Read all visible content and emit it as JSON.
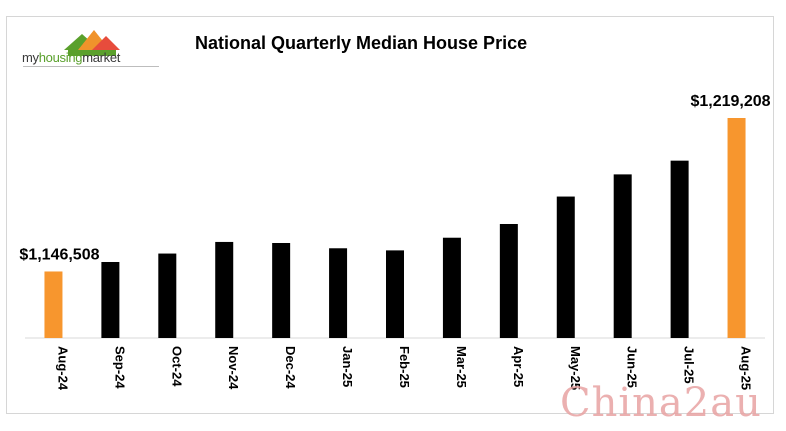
{
  "logo": {
    "part1": "my",
    "part2": "housing",
    "part3": "market",
    "house_colors": [
      "#5aa02c",
      "#f0932b",
      "#e74c3c"
    ]
  },
  "watermark": "China2au",
  "chart_data": {
    "type": "bar",
    "title": "National Quarterly Median House Price",
    "xlabel": "",
    "ylabel": "",
    "categories": [
      "Aug-24",
      "Sep-24",
      "Oct-24",
      "Nov-24",
      "Dec-24",
      "Jan-25",
      "Feb-25",
      "Mar-25",
      "Apr-25",
      "May-25",
      "Jun-25",
      "Jul-25",
      "Aug-25"
    ],
    "values": [
      1146508,
      1151000,
      1155000,
      1160500,
      1160000,
      1157500,
      1156500,
      1162500,
      1169000,
      1182000,
      1192500,
      1199000,
      1219208
    ],
    "highlight_indices": [
      0,
      12
    ],
    "data_labels": [
      {
        "index": 0,
        "text": "$1,146,508"
      },
      {
        "index": 12,
        "text": "$1,219,208"
      }
    ],
    "ylim": [
      1115000,
      1219208
    ],
    "grid": false,
    "legend": "none",
    "colors": {
      "bar": "#000000",
      "highlight": "#f7962e",
      "axis": "#d9d9d9"
    }
  }
}
